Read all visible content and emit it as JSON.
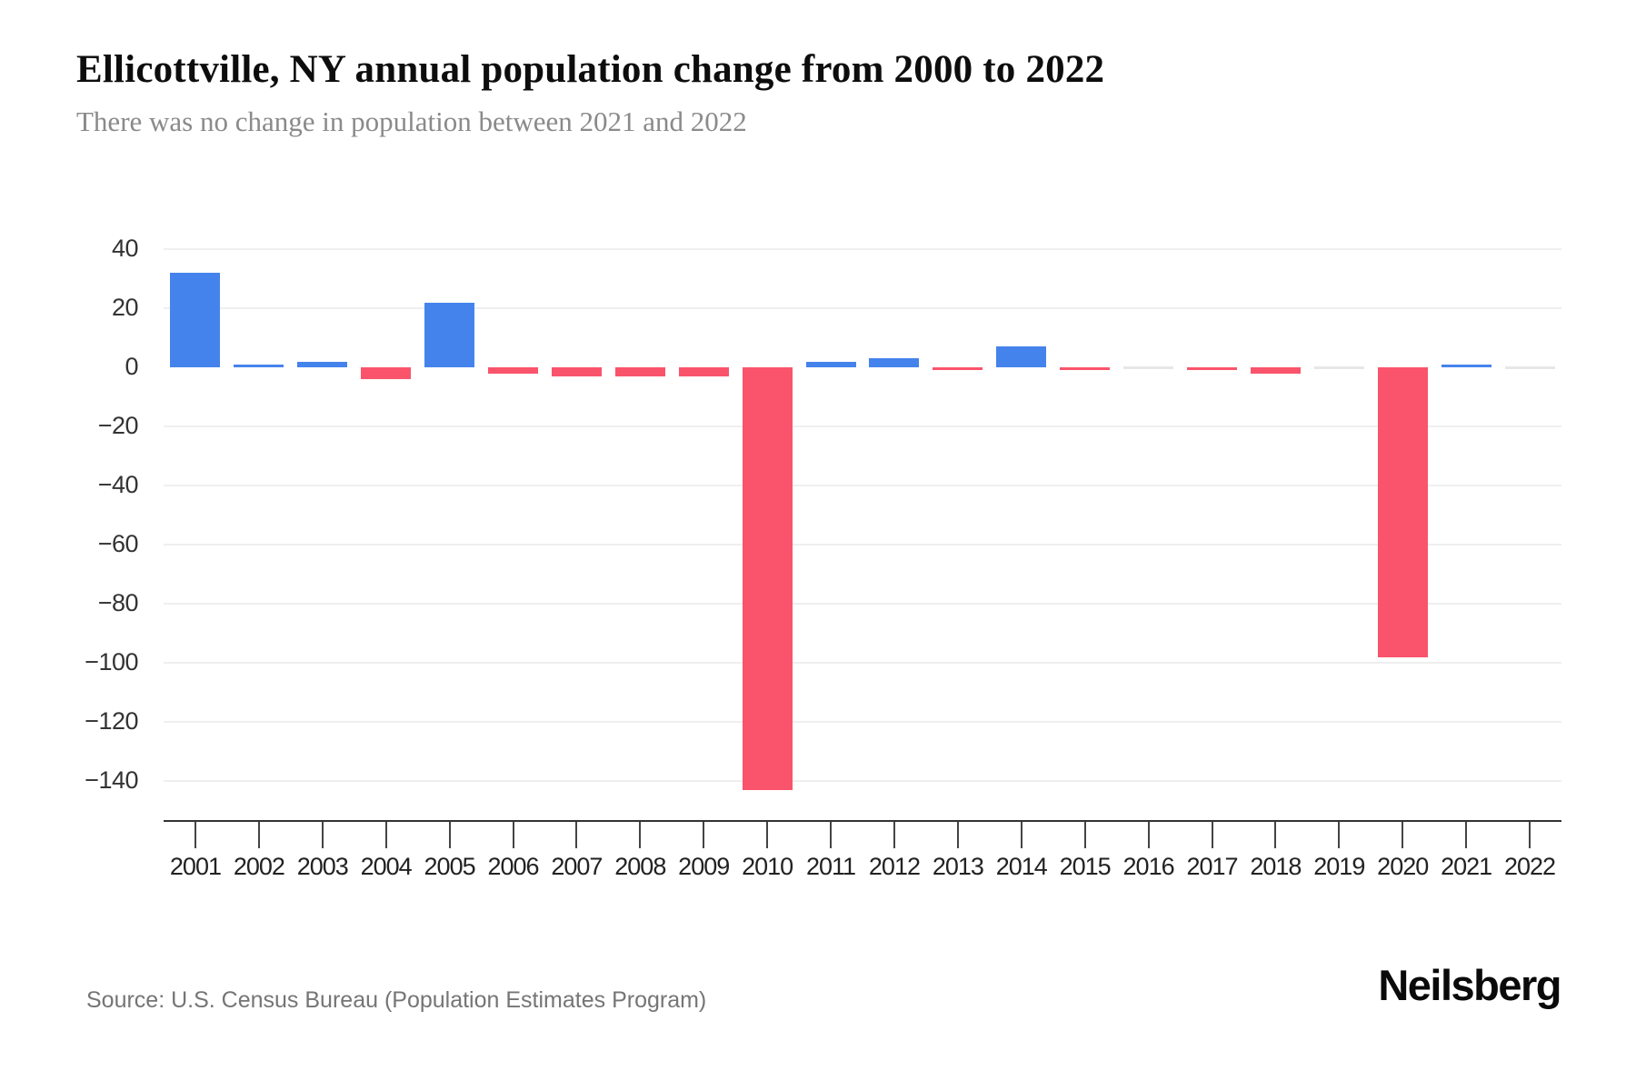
{
  "header": {
    "title": "Ellicottville, NY annual population change from 2000 to 2022",
    "subtitle": "There was no change in population between 2021 and 2022"
  },
  "footer": {
    "source": "Source: U.S. Census Bureau (Population Estimates Program)",
    "brand": "Neilsberg"
  },
  "colors": {
    "positive_bar": "#4583EC",
    "negative_bar": "#F9546B",
    "zero_bar": "#E7E7E7",
    "gridline": "#EFEFEF",
    "axis": "#333333",
    "title_text": "#0D0D0D",
    "subtitle_text": "#8A8A8A",
    "source_text": "#757575"
  },
  "chart_data": {
    "type": "bar",
    "title": "Ellicottville, NY annual population change from 2000 to 2022",
    "subtitle": "There was no change in population between 2021 and 2022",
    "categories": [
      "2001",
      "2002",
      "2003",
      "2004",
      "2005",
      "2006",
      "2007",
      "2008",
      "2009",
      "2010",
      "2011",
      "2012",
      "2013",
      "2014",
      "2015",
      "2016",
      "2017",
      "2018",
      "2019",
      "2020",
      "2021",
      "2022"
    ],
    "values": [
      32,
      1,
      2,
      -4,
      22,
      -2,
      -3,
      -3,
      -3,
      -143,
      2,
      3,
      -1,
      7,
      -1,
      0,
      -1,
      -2,
      0,
      -98,
      1,
      0
    ],
    "xlabel": "",
    "ylabel": "",
    "ylim": [
      -153,
      49
    ],
    "yticks": [
      40,
      20,
      0,
      -20,
      -40,
      -60,
      -80,
      -100,
      -120,
      -140
    ],
    "ytick_labels": [
      "40",
      "20",
      "0",
      "−20",
      "−40",
      "−60",
      "−80",
      "−100",
      "−120",
      "−140"
    ],
    "grid": "horizontal",
    "legend": "none",
    "series_colors": {
      "positive": "#4583EC",
      "negative": "#F9546B",
      "zero": "#E7E7E7"
    }
  }
}
